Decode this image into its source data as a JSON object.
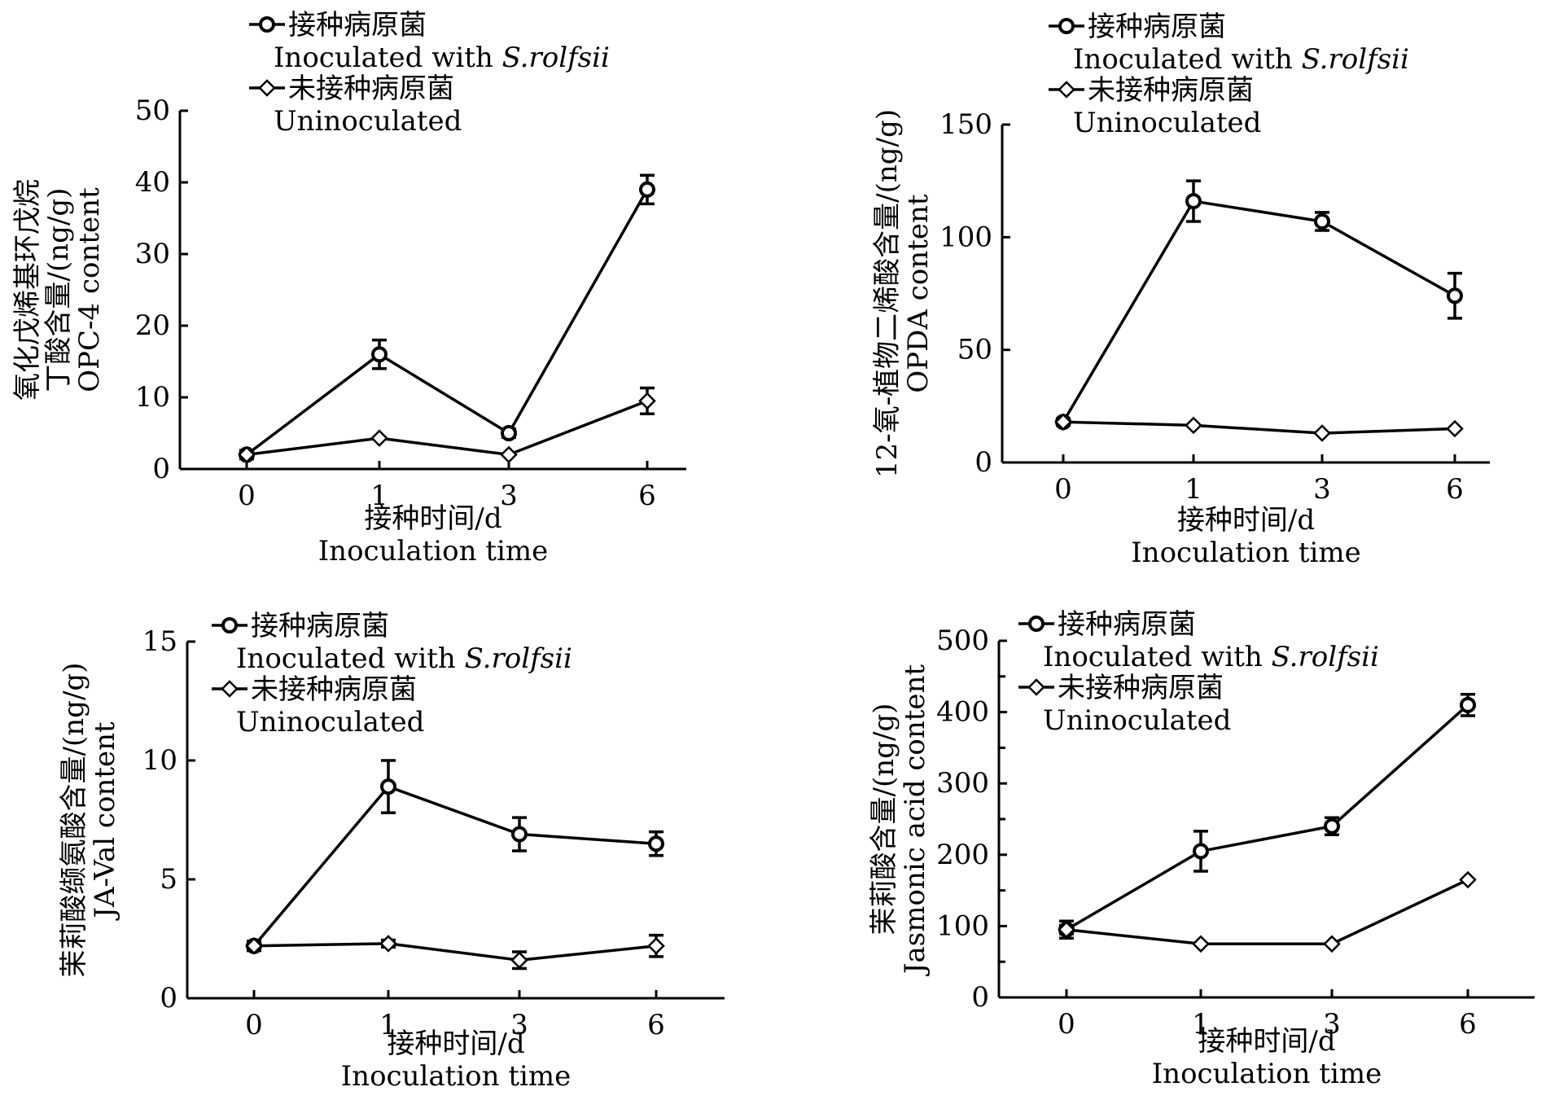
{
  "chart_data": [
    {
      "type": "line",
      "x_categories": [
        "0",
        "1",
        "3",
        "6"
      ],
      "ylim": [
        0,
        50
      ],
      "yticks": [
        0,
        10,
        20,
        30,
        40,
        50
      ],
      "xlabel": [
        "接种时间/d",
        "Inoculation time"
      ],
      "ylabel": [
        "氧化戊烯基环戊烷",
        "丁酸含量/(ng/g)",
        "OPC-4 content"
      ],
      "legend": [
        {
          "marker": "circle",
          "lines": [
            "接种病原菌",
            "Inoculated with ",
            "S.rolfsii"
          ]
        },
        {
          "marker": "diamond",
          "lines": [
            "未接种病原菌",
            "Uninoculated"
          ]
        }
      ],
      "series": [
        {
          "marker": "circle",
          "values": [
            2,
            16,
            5,
            39
          ],
          "errors": [
            0.6,
            2,
            0.6,
            2
          ]
        },
        {
          "marker": "diamond",
          "values": [
            2,
            4.3,
            2,
            9.5
          ],
          "errors": [
            0.3,
            0.4,
            0.3,
            1.8
          ]
        }
      ]
    },
    {
      "type": "line",
      "x_categories": [
        "0",
        "1",
        "3",
        "6"
      ],
      "ylim": [
        0,
        150
      ],
      "yticks": [
        0,
        50,
        100,
        150
      ],
      "xlabel": [
        "接种时间/d",
        "Inoculation time"
      ],
      "ylabel": [
        "12-氧-植物二烯酸含量/(ng/g)",
        "OPDA content"
      ],
      "legend": [
        {
          "marker": "circle",
          "lines": [
            "接种病原菌",
            "Inoculated with ",
            "S.rolfsii"
          ]
        },
        {
          "marker": "diamond",
          "lines": [
            "未接种病原菌",
            "Uninoculated"
          ]
        }
      ],
      "series": [
        {
          "marker": "circle",
          "values": [
            18,
            116,
            107,
            74
          ],
          "errors": [
            1.5,
            9,
            4,
            10
          ]
        },
        {
          "marker": "diamond",
          "values": [
            18,
            16.5,
            13,
            15
          ],
          "errors": [
            1,
            1,
            1,
            1
          ]
        }
      ]
    },
    {
      "type": "line",
      "x_categories": [
        "0",
        "1",
        "3",
        "6"
      ],
      "ylim": [
        0,
        15
      ],
      "yticks": [
        0,
        5,
        10,
        15
      ],
      "xlabel": [
        "接种时间/d",
        "Inoculation time"
      ],
      "ylabel": [
        "茉莉酸缬氨酸含量/(ng/g)",
        "JA-Val content"
      ],
      "legend": [
        {
          "marker": "circle",
          "lines": [
            "接种病原菌",
            "Inoculated with ",
            "S.rolfsii"
          ]
        },
        {
          "marker": "diamond",
          "lines": [
            "未接种病原菌",
            "Uninoculated"
          ]
        }
      ],
      "series": [
        {
          "marker": "circle",
          "values": [
            2.2,
            8.9,
            6.9,
            6.5
          ],
          "errors": [
            0.2,
            1.1,
            0.7,
            0.5
          ]
        },
        {
          "marker": "diamond",
          "values": [
            2.2,
            2.3,
            1.6,
            2.2
          ],
          "errors": [
            0.15,
            0.15,
            0.35,
            0.45
          ]
        }
      ]
    },
    {
      "type": "line",
      "x_categories": [
        "0",
        "1",
        "3",
        "6"
      ],
      "ylim": [
        0,
        500
      ],
      "yticks": [
        0,
        100,
        200,
        300,
        400,
        500
      ],
      "xlabel": [
        "接种时间/d",
        "Inoculation time"
      ],
      "ylabel": [
        "茉莉酸含量/(ng/g)",
        "Jasmonic acid content"
      ],
      "legend": [
        {
          "marker": "circle",
          "lines": [
            "接种病原菌",
            "Inoculated with ",
            "S.rolfsii"
          ]
        },
        {
          "marker": "diamond",
          "lines": [
            "未接种病原菌",
            "Uninoculated"
          ]
        }
      ],
      "series": [
        {
          "marker": "circle",
          "values": [
            95,
            205,
            240,
            410
          ],
          "errors": [
            12,
            28,
            12,
            15
          ]
        },
        {
          "marker": "diamond",
          "values": [
            95,
            75,
            75,
            165
          ],
          "errors": [
            6,
            4,
            4,
            4
          ]
        }
      ]
    }
  ]
}
